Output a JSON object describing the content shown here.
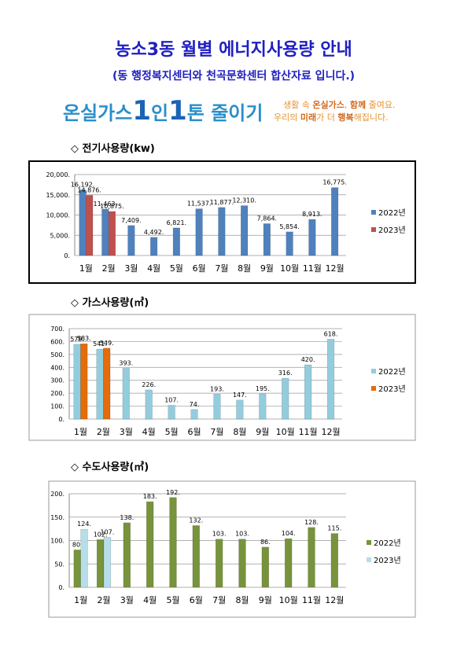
{
  "header": {
    "title": "농소3동 월별 에너지사용량 안내",
    "subtitle": "(동 행정복지센터와 천곡문화센터 합산자료 입니다.)",
    "banner": {
      "slogan_a": "온실가스",
      "num_a": "1",
      "slogan_b": "인",
      "num_b": "1",
      "slogan_c": "톤 줄이기",
      "line1_a": "생활 속 ",
      "line1_b": "온실가스",
      "line1_c": ", ",
      "line1_d": "함께",
      "line1_e": " 줄여요.",
      "line2_a": "우리의 ",
      "line2_b": "미래",
      "line2_c": "가 더 ",
      "line2_d": "행복",
      "line2_e": "해집니다."
    }
  },
  "chart_data": [
    {
      "type": "bar",
      "title": "◇ 전기사용량(kw)",
      "categories": [
        "1월",
        "2월",
        "3월",
        "4월",
        "5월",
        "6월",
        "7월",
        "8월",
        "9월",
        "10월",
        "11월",
        "12월"
      ],
      "series": [
        {
          "name": "2022년",
          "color": "#4f81bd",
          "values": [
            16192,
            11463,
            7409,
            4492,
            6821,
            11537,
            11877,
            12310,
            7864,
            5854,
            8913,
            16775
          ],
          "value_labels": [
            "16,192.",
            "11,463.",
            "7,409.",
            "4,492.",
            "6,821.",
            "11,537.",
            "11,877.",
            "12,310.",
            "7,864.",
            "5,854.",
            "8,913.",
            "16,775."
          ]
        },
        {
          "name": "2023년",
          "color": "#c0504d",
          "values": [
            14876,
            10875,
            null,
            null,
            null,
            null,
            null,
            null,
            null,
            null,
            null,
            null
          ],
          "value_labels": [
            "14,876.",
            "10,875.",
            null,
            null,
            null,
            null,
            null,
            null,
            null,
            null,
            null,
            null
          ]
        }
      ],
      "ylim": [
        0,
        20000
      ],
      "yticks": [
        {
          "value": 0,
          "label": "0."
        },
        {
          "value": 5000,
          "label": "5,000."
        },
        {
          "value": 10000,
          "label": "10,000."
        },
        {
          "value": 15000,
          "label": "15,000."
        },
        {
          "value": 20000,
          "label": "20,000."
        }
      ],
      "grid": true,
      "legend": "right"
    },
    {
      "type": "bar",
      "title": "◇ 가스사용량(㎥)",
      "categories": [
        "1월",
        "2월",
        "3월",
        "4월",
        "5월",
        "6월",
        "7월",
        "8월",
        "9월",
        "10월",
        "11월",
        "12월"
      ],
      "series": [
        {
          "name": "2022년",
          "color": "#93cddd",
          "values": [
            579,
            541,
            393,
            226,
            107,
            74,
            193,
            147,
            195,
            316,
            420,
            618
          ],
          "value_labels": [
            "579.",
            "541.",
            "393.",
            "226.",
            "107.",
            "74.",
            "193.",
            "147.",
            "195.",
            "316.",
            "420.",
            "618."
          ]
        },
        {
          "name": "2023년",
          "color": "#e46c0a",
          "values": [
            583,
            549,
            null,
            null,
            null,
            null,
            null,
            null,
            null,
            null,
            null,
            null
          ],
          "value_labels": [
            "583.",
            "549.",
            null,
            null,
            null,
            null,
            null,
            null,
            null,
            null,
            null,
            null
          ]
        }
      ],
      "ylim": [
        0,
        700
      ],
      "yticks": [
        {
          "value": 0,
          "label": "0."
        },
        {
          "value": 100,
          "label": "100."
        },
        {
          "value": 200,
          "label": "200."
        },
        {
          "value": 300,
          "label": "300."
        },
        {
          "value": 400,
          "label": "400."
        },
        {
          "value": 500,
          "label": "500."
        },
        {
          "value": 600,
          "label": "600."
        },
        {
          "value": 700,
          "label": "700."
        }
      ],
      "grid": true,
      "legend": "right"
    },
    {
      "type": "bar",
      "title": "◇ 수도사용량(㎥)",
      "categories": [
        "1월",
        "2월",
        "3월",
        "4월",
        "5월",
        "6월",
        "7월",
        "8월",
        "9월",
        "10월",
        "11월",
        "12월"
      ],
      "series": [
        {
          "name": "2022년",
          "color": "#77933c",
          "values": [
            80,
            102,
            138,
            183,
            192,
            132,
            103,
            103,
            86,
            104,
            128,
            115
          ],
          "value_labels": [
            "80.",
            "102.",
            "138.",
            "183.",
            "192.",
            "132.",
            "103.",
            "103.",
            "86.",
            "104.",
            "128.",
            "115."
          ]
        },
        {
          "name": "2023년",
          "color": "#b7dee8",
          "values": [
            124,
            107,
            null,
            null,
            null,
            null,
            null,
            null,
            null,
            null,
            null,
            null
          ],
          "value_labels": [
            "124.",
            "107.",
            null,
            null,
            null,
            null,
            null,
            null,
            null,
            null,
            null,
            null
          ]
        }
      ],
      "ylim": [
        0,
        200
      ],
      "yticks": [
        {
          "value": 0,
          "label": "0."
        },
        {
          "value": 50,
          "label": "50."
        },
        {
          "value": 100,
          "label": "100."
        },
        {
          "value": 150,
          "label": "150."
        },
        {
          "value": 200,
          "label": "200."
        }
      ],
      "grid": true,
      "legend": "right"
    }
  ]
}
